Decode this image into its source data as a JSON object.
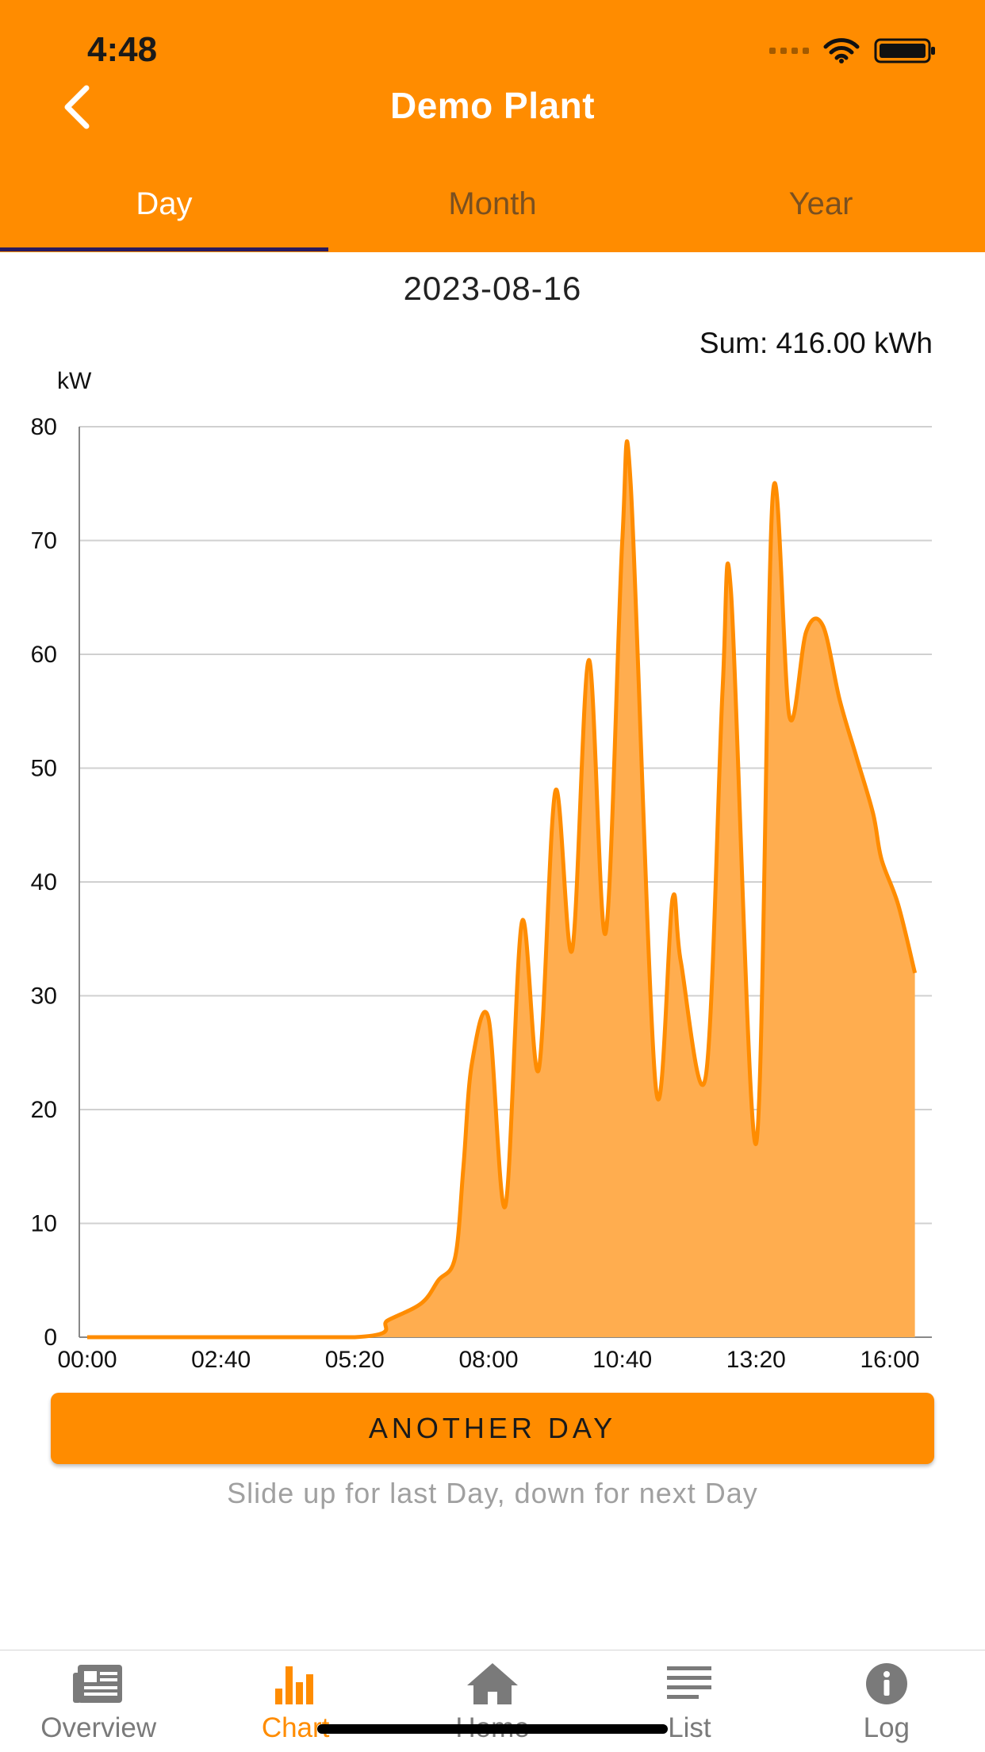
{
  "status_bar": {
    "time": "4:48"
  },
  "nav": {
    "title": "Demo Plant"
  },
  "tabs": [
    {
      "label": "Day",
      "active": true
    },
    {
      "label": "Month",
      "active": false
    },
    {
      "label": "Year",
      "active": false
    }
  ],
  "date": "2023-08-16",
  "sum": "Sum: 416.00 kWh",
  "chart_data": {
    "type": "area",
    "ylabel": "kW",
    "ylim": [
      0,
      80
    ],
    "yticks": [
      "0",
      "10",
      "20",
      "30",
      "40",
      "50",
      "60",
      "70",
      "80"
    ],
    "xticks": [
      "00:00",
      "02:40",
      "05:20",
      "08:00",
      "10:40",
      "13:20",
      "16:00"
    ],
    "grid": true,
    "color": "#FF8C00",
    "fill": "#FFAD4F",
    "points": [
      [
        "00:00",
        0
      ],
      [
        "05:20",
        0
      ],
      [
        "06:00",
        1.5
      ],
      [
        "06:40",
        3
      ],
      [
        "07:00",
        5
      ],
      [
        "07:20",
        7
      ],
      [
        "07:30",
        15
      ],
      [
        "07:40",
        24
      ],
      [
        "08:00",
        28
      ],
      [
        "08:20",
        11.5
      ],
      [
        "08:40",
        36.5
      ],
      [
        "09:00",
        23.5
      ],
      [
        "09:20",
        48
      ],
      [
        "09:40",
        34
      ],
      [
        "10:00",
        59.5
      ],
      [
        "10:20",
        35.5
      ],
      [
        "10:40",
        70
      ],
      [
        "10:50",
        75
      ],
      [
        "11:20",
        22
      ],
      [
        "11:40",
        38.5
      ],
      [
        "11:50",
        33
      ],
      [
        "12:20",
        23
      ],
      [
        "12:40",
        57
      ],
      [
        "12:50",
        65.5
      ],
      [
        "13:20",
        17
      ],
      [
        "13:40",
        74
      ],
      [
        "14:00",
        54.5
      ],
      [
        "14:20",
        62
      ],
      [
        "14:40",
        62.5
      ],
      [
        "15:00",
        56
      ],
      [
        "15:20",
        51
      ],
      [
        "15:40",
        46
      ],
      [
        "15:50",
        42
      ],
      [
        "16:10",
        38
      ],
      [
        "16:30",
        32
      ]
    ]
  },
  "actions": {
    "another_day": "ANOTHER DAY",
    "hint": "Slide up for last Day, down for next Day"
  },
  "tabbar": [
    {
      "label": "Overview",
      "icon": "newspaper-icon",
      "active": false
    },
    {
      "label": "Chart",
      "icon": "bar-chart-icon",
      "active": true
    },
    {
      "label": "Home",
      "icon": "home-icon",
      "active": false
    },
    {
      "label": "List",
      "icon": "list-icon",
      "active": false
    },
    {
      "label": "Log",
      "icon": "info-icon",
      "active": false
    }
  ]
}
